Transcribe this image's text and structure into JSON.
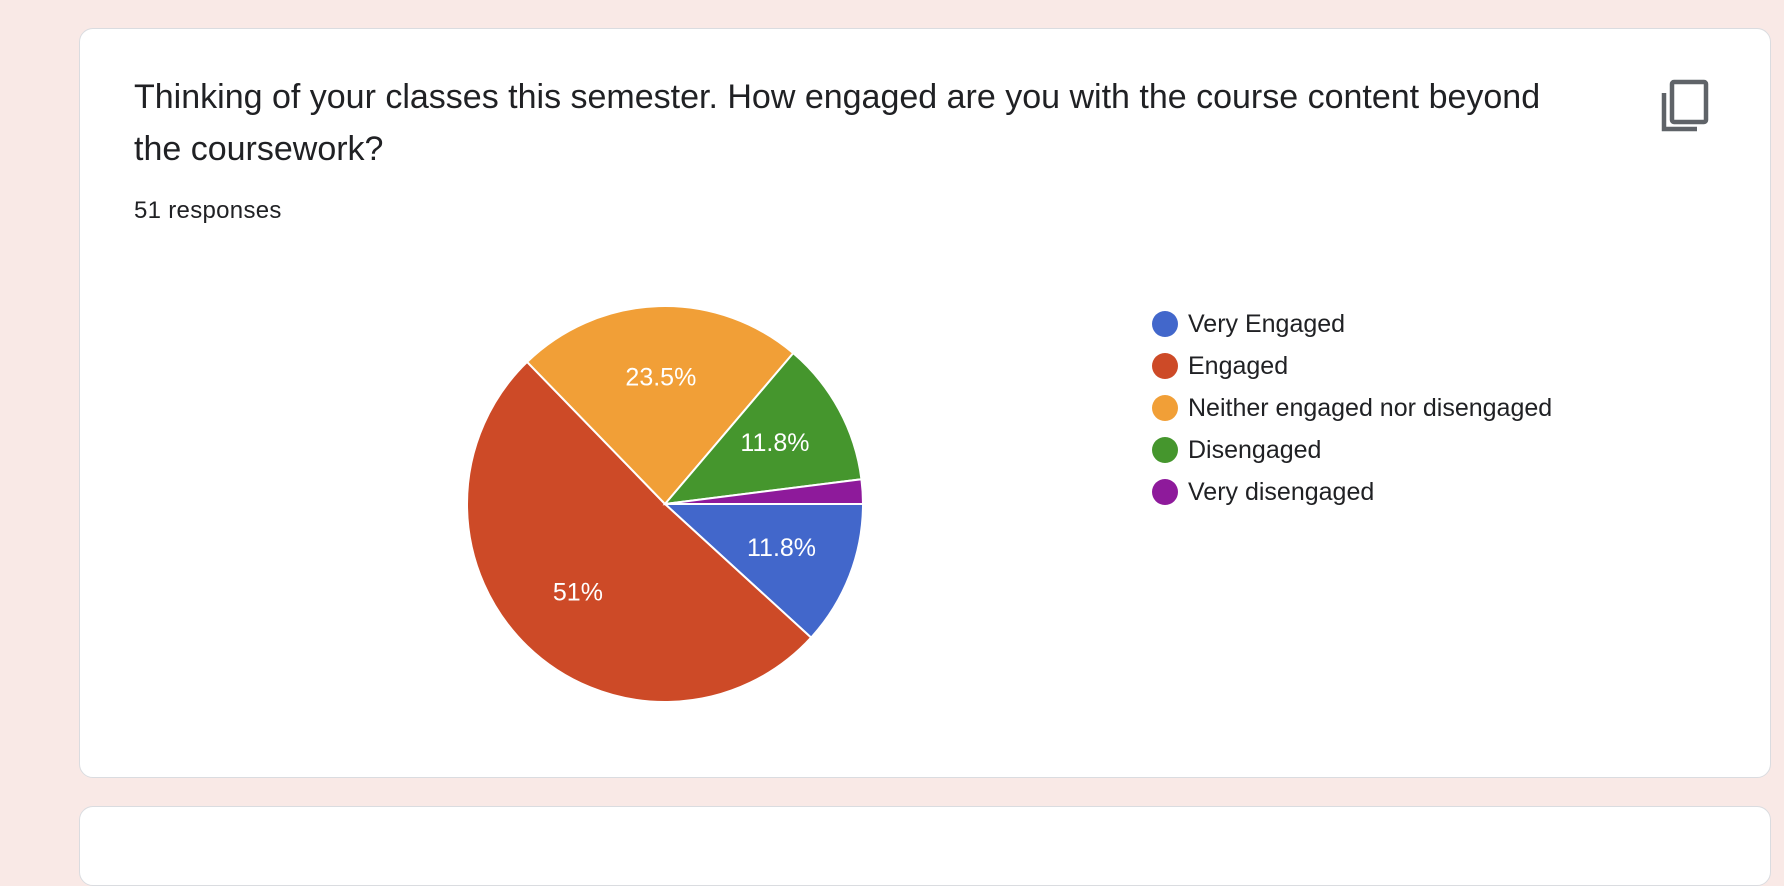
{
  "question": {
    "title": "Thinking of your classes this semester. How engaged are you with the course content beyond the coursework?",
    "responses": "51 responses"
  },
  "icons": {
    "copy": "copy-icon"
  },
  "chart_data": {
    "type": "pie",
    "slices": [
      {
        "label": "Very Engaged",
        "value": 11.8,
        "color": "#4267cb",
        "data_label": "11.8%"
      },
      {
        "label": "Engaged",
        "value": 51.0,
        "color": "#cd4a27",
        "data_label": "51%"
      },
      {
        "label": "Neither engaged nor disengaged",
        "value": 23.5,
        "color": "#f19f37",
        "data_label": "23.5%"
      },
      {
        "label": "Disengaged",
        "value": 11.8,
        "color": "#45962d",
        "data_label": "11.8%"
      },
      {
        "label": "Very disengaged",
        "value": 2.0,
        "color": "#8e1a9b",
        "data_label": ""
      }
    ],
    "legend_position": "right"
  }
}
